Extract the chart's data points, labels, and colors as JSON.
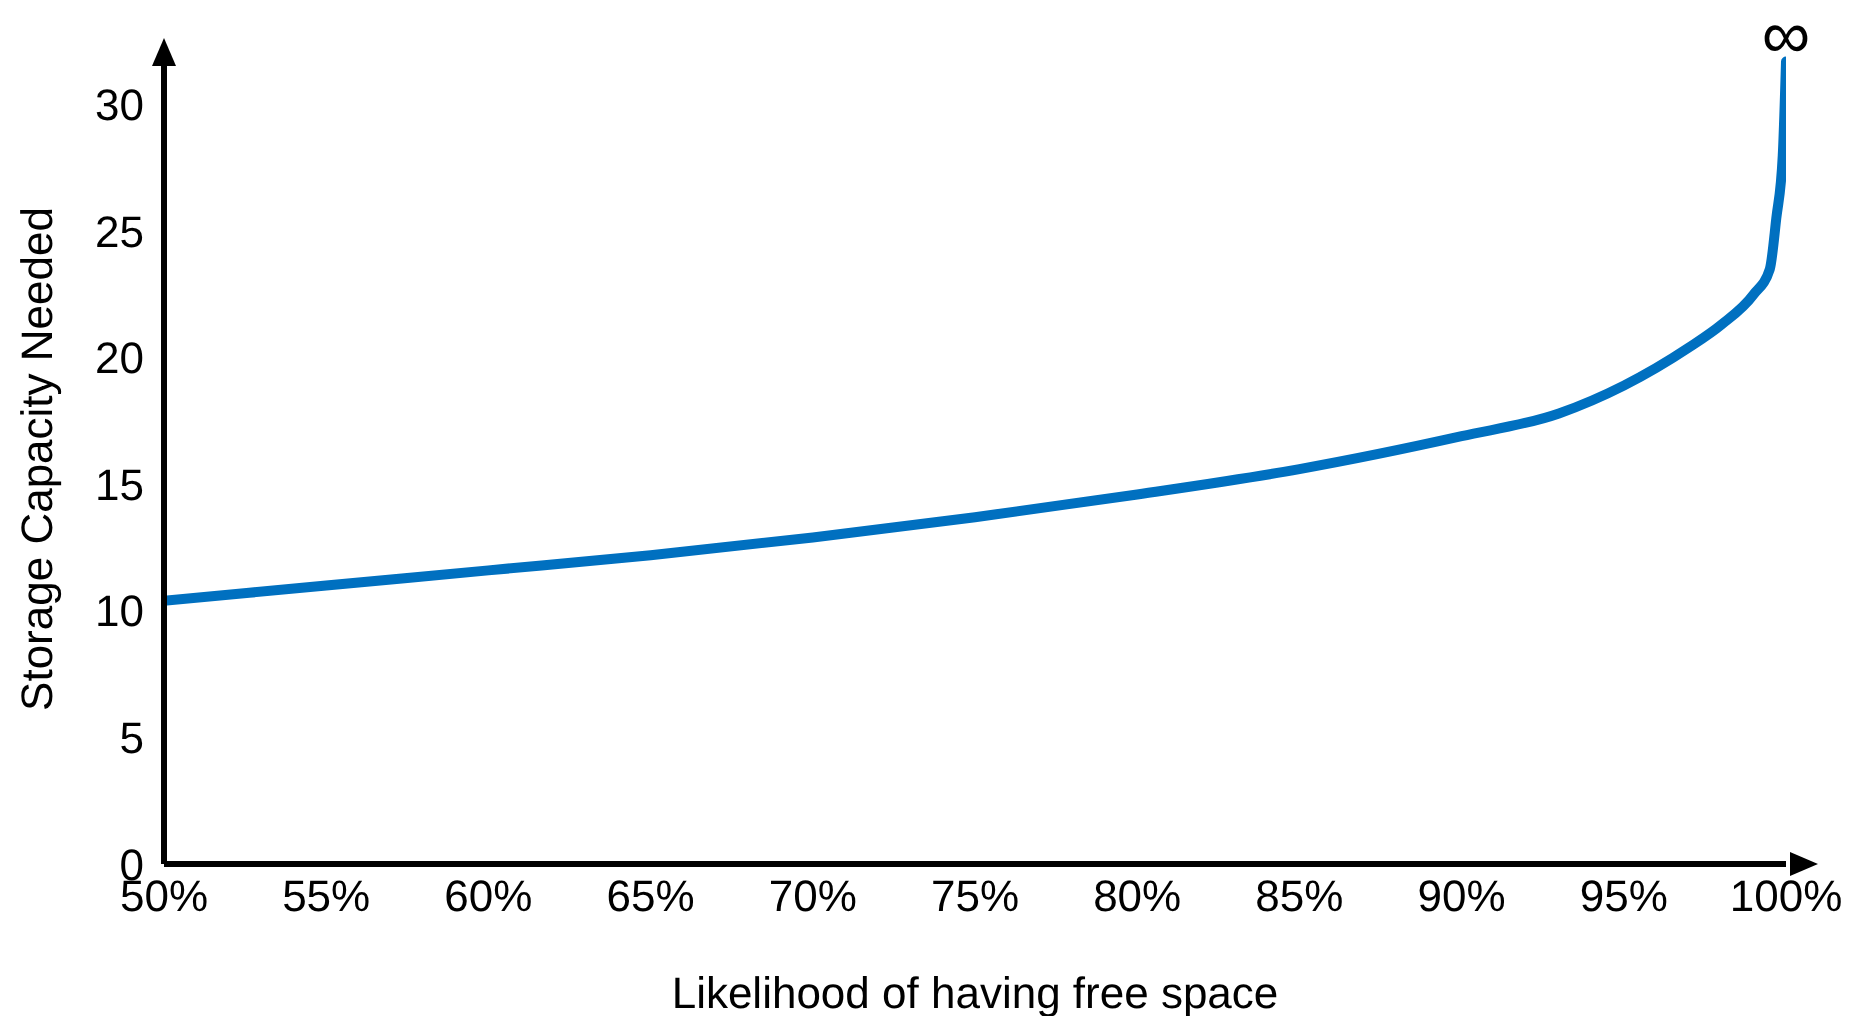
{
  "chart_data": {
    "type": "line",
    "xlabel": "Likelihood of having free space",
    "ylabel": "Storage Capacity Needed",
    "x": [
      50,
      55,
      60,
      65,
      70,
      75,
      80,
      85,
      90,
      93,
      95,
      97,
      98,
      99,
      99.5,
      99.7,
      99.9,
      100
    ],
    "series": [
      {
        "color": "#0070c0",
        "values": [
          10.4,
          11.0,
          11.6,
          12.2,
          12.9,
          13.7,
          14.6,
          15.6,
          16.9,
          17.8,
          18.9,
          20.4,
          21.3,
          22.5,
          23.5,
          25.5,
          28,
          31.7
        ]
      }
    ],
    "xlim": [
      50,
      100
    ],
    "xticks": [
      {
        "value": 50,
        "label": "50%"
      },
      {
        "value": 55,
        "label": "55%"
      },
      {
        "value": 60,
        "label": "60%"
      },
      {
        "value": 65,
        "label": "65%"
      },
      {
        "value": 70,
        "label": "70%"
      },
      {
        "value": 75,
        "label": "75%"
      },
      {
        "value": 80,
        "label": "80%"
      },
      {
        "value": 85,
        "label": "85%"
      },
      {
        "value": 90,
        "label": "90%"
      },
      {
        "value": 95,
        "label": "95%"
      },
      {
        "value": 100,
        "label": "100%"
      }
    ],
    "ylim": [
      0,
      32
    ],
    "yticks": [
      0,
      5,
      10,
      15,
      20,
      25,
      30
    ],
    "annotations": [
      {
        "text": "∞",
        "x": 100,
        "y": 31.7
      }
    ],
    "grid": false,
    "legend": false,
    "marker": "none",
    "line_style": "solid"
  }
}
